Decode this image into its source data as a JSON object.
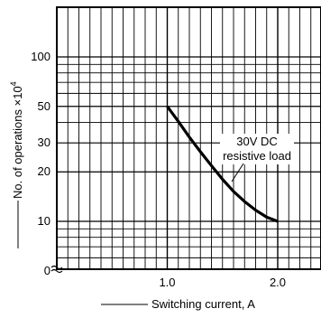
{
  "chart_data": {
    "type": "line",
    "title": "",
    "xlabel": "Switching current, A",
    "ylabel": "No. of operations ×10",
    "ylabel_exponent": "4",
    "x_ticks": [
      "1.0",
      "2.0"
    ],
    "y_ticks": [
      "0",
      "10",
      "20",
      "30",
      "50",
      "100"
    ],
    "y_scale": "log (broken axis near 0)",
    "grid": true,
    "xlim": [
      0,
      2.5
    ],
    "series": [
      {
        "name": "",
        "x": [
          1.0,
          1.1,
          1.2,
          1.3,
          1.4,
          1.5,
          1.6,
          1.7,
          1.8,
          1.9,
          2.0
        ],
        "y": [
          50,
          40.5,
          32.5,
          26.5,
          21.8,
          18,
          15.2,
          13.2,
          11.7,
          10.6,
          10
        ]
      }
    ],
    "annotation": {
      "lines": [
        "30V DC",
        "resistive load"
      ]
    }
  }
}
